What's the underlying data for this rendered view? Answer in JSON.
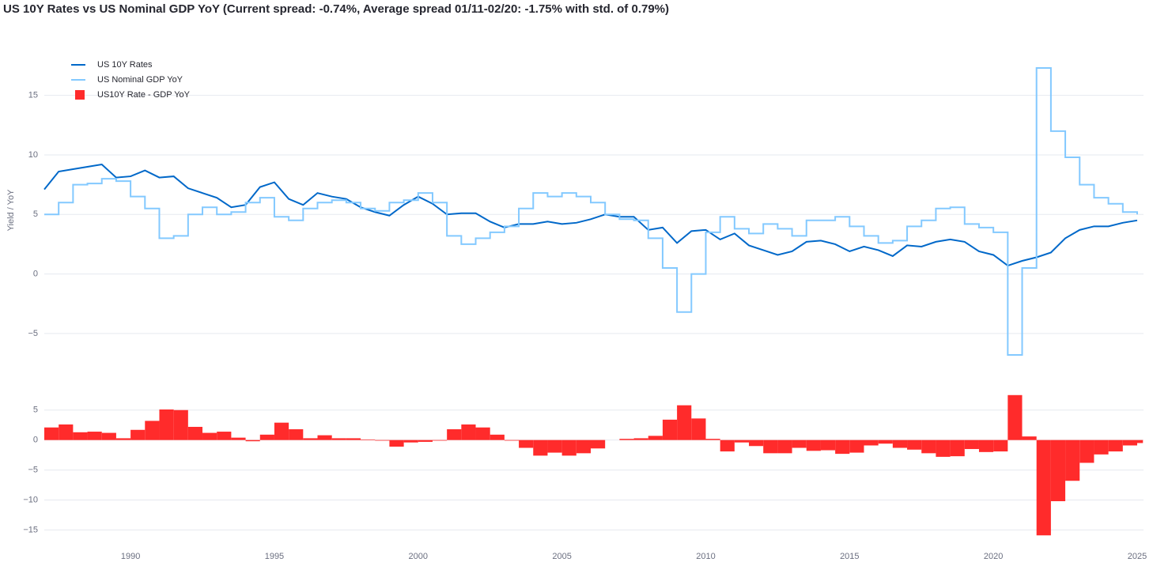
{
  "chart_data": [
    {
      "type": "line",
      "title": "US 10Y Rates vs US Nominal GDP YoY (Current spread: -0.74%, Average spread 01/11-02/20: -1.75% with std. of 0.79%)",
      "y_label": "Yield / YoY",
      "x": [
        1987.0,
        1987.5,
        1988.0,
        1988.5,
        1989.0,
        1989.5,
        1990.0,
        1990.5,
        1991.0,
        1991.5,
        1992.0,
        1992.5,
        1993.0,
        1993.5,
        1994.0,
        1994.5,
        1995.0,
        1995.5,
        1996.0,
        1996.5,
        1997.0,
        1997.5,
        1998.0,
        1998.5,
        1999.0,
        1999.5,
        2000.0,
        2000.5,
        2001.0,
        2001.5,
        2002.0,
        2002.5,
        2003.0,
        2003.5,
        2004.0,
        2004.5,
        2005.0,
        2005.5,
        2006.0,
        2006.5,
        2007.0,
        2007.5,
        2008.0,
        2008.5,
        2009.0,
        2009.5,
        2010.0,
        2010.5,
        2011.0,
        2011.5,
        2012.0,
        2012.5,
        2013.0,
        2013.5,
        2014.0,
        2014.5,
        2015.0,
        2015.5,
        2016.0,
        2016.5,
        2017.0,
        2017.5,
        2018.0,
        2018.5,
        2019.0,
        2019.5,
        2020.0,
        2020.5,
        2021.0,
        2021.5,
        2022.0,
        2022.5,
        2023.0,
        2023.5,
        2024.0,
        2024.5,
        2025.0
      ],
      "series": [
        {
          "name": "US 10Y Rates",
          "color": "#0068c9",
          "shape": "linear",
          "values": [
            7.1,
            8.6,
            8.8,
            9.0,
            9.2,
            8.1,
            8.2,
            8.7,
            8.1,
            8.2,
            7.2,
            6.8,
            6.4,
            5.6,
            5.8,
            7.3,
            7.7,
            6.3,
            5.8,
            6.8,
            6.5,
            6.3,
            5.6,
            5.2,
            4.9,
            5.8,
            6.5,
            5.9,
            5.0,
            5.1,
            5.1,
            4.4,
            3.9,
            4.2,
            4.2,
            4.4,
            4.2,
            4.3,
            4.6,
            5.0,
            4.8,
            4.8,
            3.7,
            3.9,
            2.6,
            3.6,
            3.7,
            2.9,
            3.4,
            2.4,
            2.0,
            1.6,
            1.9,
            2.7,
            2.8,
            2.5,
            1.9,
            2.3,
            2.0,
            1.5,
            2.4,
            2.3,
            2.7,
            2.9,
            2.7,
            1.9,
            1.6,
            0.7,
            1.1,
            1.4,
            1.8,
            3.0,
            3.7,
            4.0,
            4.0,
            4.3,
            4.5
          ]
        },
        {
          "name": "US Nominal GDP YoY",
          "color": "#83c9ff",
          "shape": "hv",
          "values": [
            5.0,
            6.0,
            7.5,
            7.6,
            8.0,
            7.8,
            6.5,
            5.5,
            3.0,
            3.2,
            5.0,
            5.6,
            5.0,
            5.2,
            6.0,
            6.4,
            4.8,
            4.5,
            5.5,
            6.0,
            6.2,
            6.0,
            5.5,
            5.3,
            6.0,
            6.2,
            6.8,
            6.0,
            3.2,
            2.5,
            3.0,
            3.5,
            4.0,
            5.5,
            6.8,
            6.5,
            6.8,
            6.5,
            6.0,
            5.0,
            4.6,
            4.5,
            3.0,
            0.5,
            -3.2,
            0.0,
            3.5,
            4.8,
            3.8,
            3.4,
            4.2,
            3.8,
            3.2,
            4.5,
            4.5,
            4.8,
            4.0,
            3.2,
            2.6,
            2.8,
            4.0,
            4.5,
            5.5,
            5.6,
            4.2,
            3.9,
            3.5,
            -6.8,
            0.5,
            17.3,
            12.0,
            9.8,
            7.5,
            6.4,
            5.9,
            5.2,
            5.0
          ]
        }
      ],
      "xlim": [
        1987.0,
        2025.22
      ],
      "ylim": [
        -7,
        17.7
      ],
      "yticks": [
        {
          "value": -5,
          "label": "−5"
        },
        0,
        5,
        10,
        15
      ],
      "grid": true
    },
    {
      "type": "bar",
      "series": [
        {
          "name": "US10Y Rate - GDP YoY",
          "color": "#ff2b2b",
          "values": [
            2.1,
            2.6,
            1.3,
            1.4,
            1.2,
            0.3,
            1.7,
            3.2,
            5.1,
            5.0,
            2.2,
            1.2,
            1.4,
            0.4,
            -0.2,
            0.9,
            2.9,
            1.8,
            0.3,
            0.8,
            0.3,
            0.3,
            0.1,
            -0.1,
            -1.1,
            -0.4,
            -0.3,
            -0.1,
            1.8,
            2.6,
            2.1,
            0.9,
            -0.1,
            -1.3,
            -2.6,
            -2.1,
            -2.6,
            -2.2,
            -1.4,
            0.0,
            0.2,
            0.3,
            0.7,
            3.4,
            5.8,
            3.6,
            0.2,
            -1.9,
            -0.4,
            -1.0,
            -2.2,
            -2.2,
            -1.3,
            -1.8,
            -1.7,
            -2.3,
            -2.1,
            -0.9,
            -0.6,
            -1.3,
            -1.6,
            -2.2,
            -2.8,
            -2.7,
            -1.5,
            -2.0,
            -1.9,
            7.5,
            0.6,
            -15.9,
            -10.2,
            -6.8,
            -3.8,
            -2.4,
            -1.9,
            -0.9,
            -0.5
          ]
        }
      ],
      "xlim": [
        1987.0,
        2025.22
      ],
      "xticks": [
        1990,
        1995,
        2000,
        2005,
        2010,
        2015,
        2020,
        2025
      ],
      "ylim": [
        -16,
        8
      ],
      "yticks": [
        {
          "value": -15,
          "label": "−15"
        },
        {
          "value": -10,
          "label": "−10"
        },
        {
          "value": -5,
          "label": "−5"
        },
        0,
        5
      ],
      "grid": true
    }
  ]
}
